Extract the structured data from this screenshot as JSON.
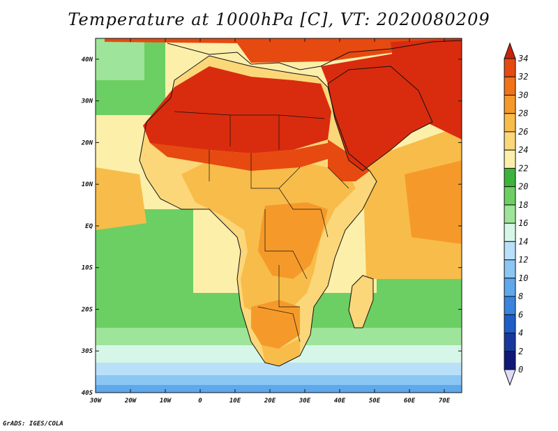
{
  "title": "Temperature at 1000hPa [C], VT: 2020080209",
  "footer": "GrADS: IGES/COLA",
  "map": {
    "variable": "Temperature at 1000hPa",
    "units": "C",
    "valid_time": "2020080209",
    "lon_range": [
      -30,
      75
    ],
    "lat_range": [
      -40,
      45
    ],
    "lon_ticks": [
      "30W",
      "20W",
      "10W",
      "0",
      "10E",
      "20E",
      "30E",
      "40E",
      "50E",
      "60E",
      "70E"
    ],
    "lat_ticks": [
      "40N",
      "30N",
      "20N",
      "10N",
      "EQ",
      "10S",
      "20S",
      "30S",
      "40S"
    ]
  },
  "legend": {
    "labels": [
      "34",
      "32",
      "30",
      "28",
      "26",
      "24",
      "22",
      "20",
      "18",
      "16",
      "14",
      "12",
      "10",
      "8",
      "6",
      "4",
      "2",
      "0"
    ],
    "colors": [
      "#d92c0e",
      "#e64a10",
      "#f07318",
      "#f59a2a",
      "#f8bc4a",
      "#fbd77a",
      "#fcefaa",
      "#3cb43c",
      "#6ccf63",
      "#9ee49a",
      "#d6f7e8",
      "#b8e0f9",
      "#8cc6f2",
      "#5ea8ec",
      "#3a84e0",
      "#1e5ec8",
      "#1838a0",
      "#101878"
    ],
    "top_arrow_color": "#c8230c",
    "bottom_arrow_color": "#e0dcf8"
  }
}
